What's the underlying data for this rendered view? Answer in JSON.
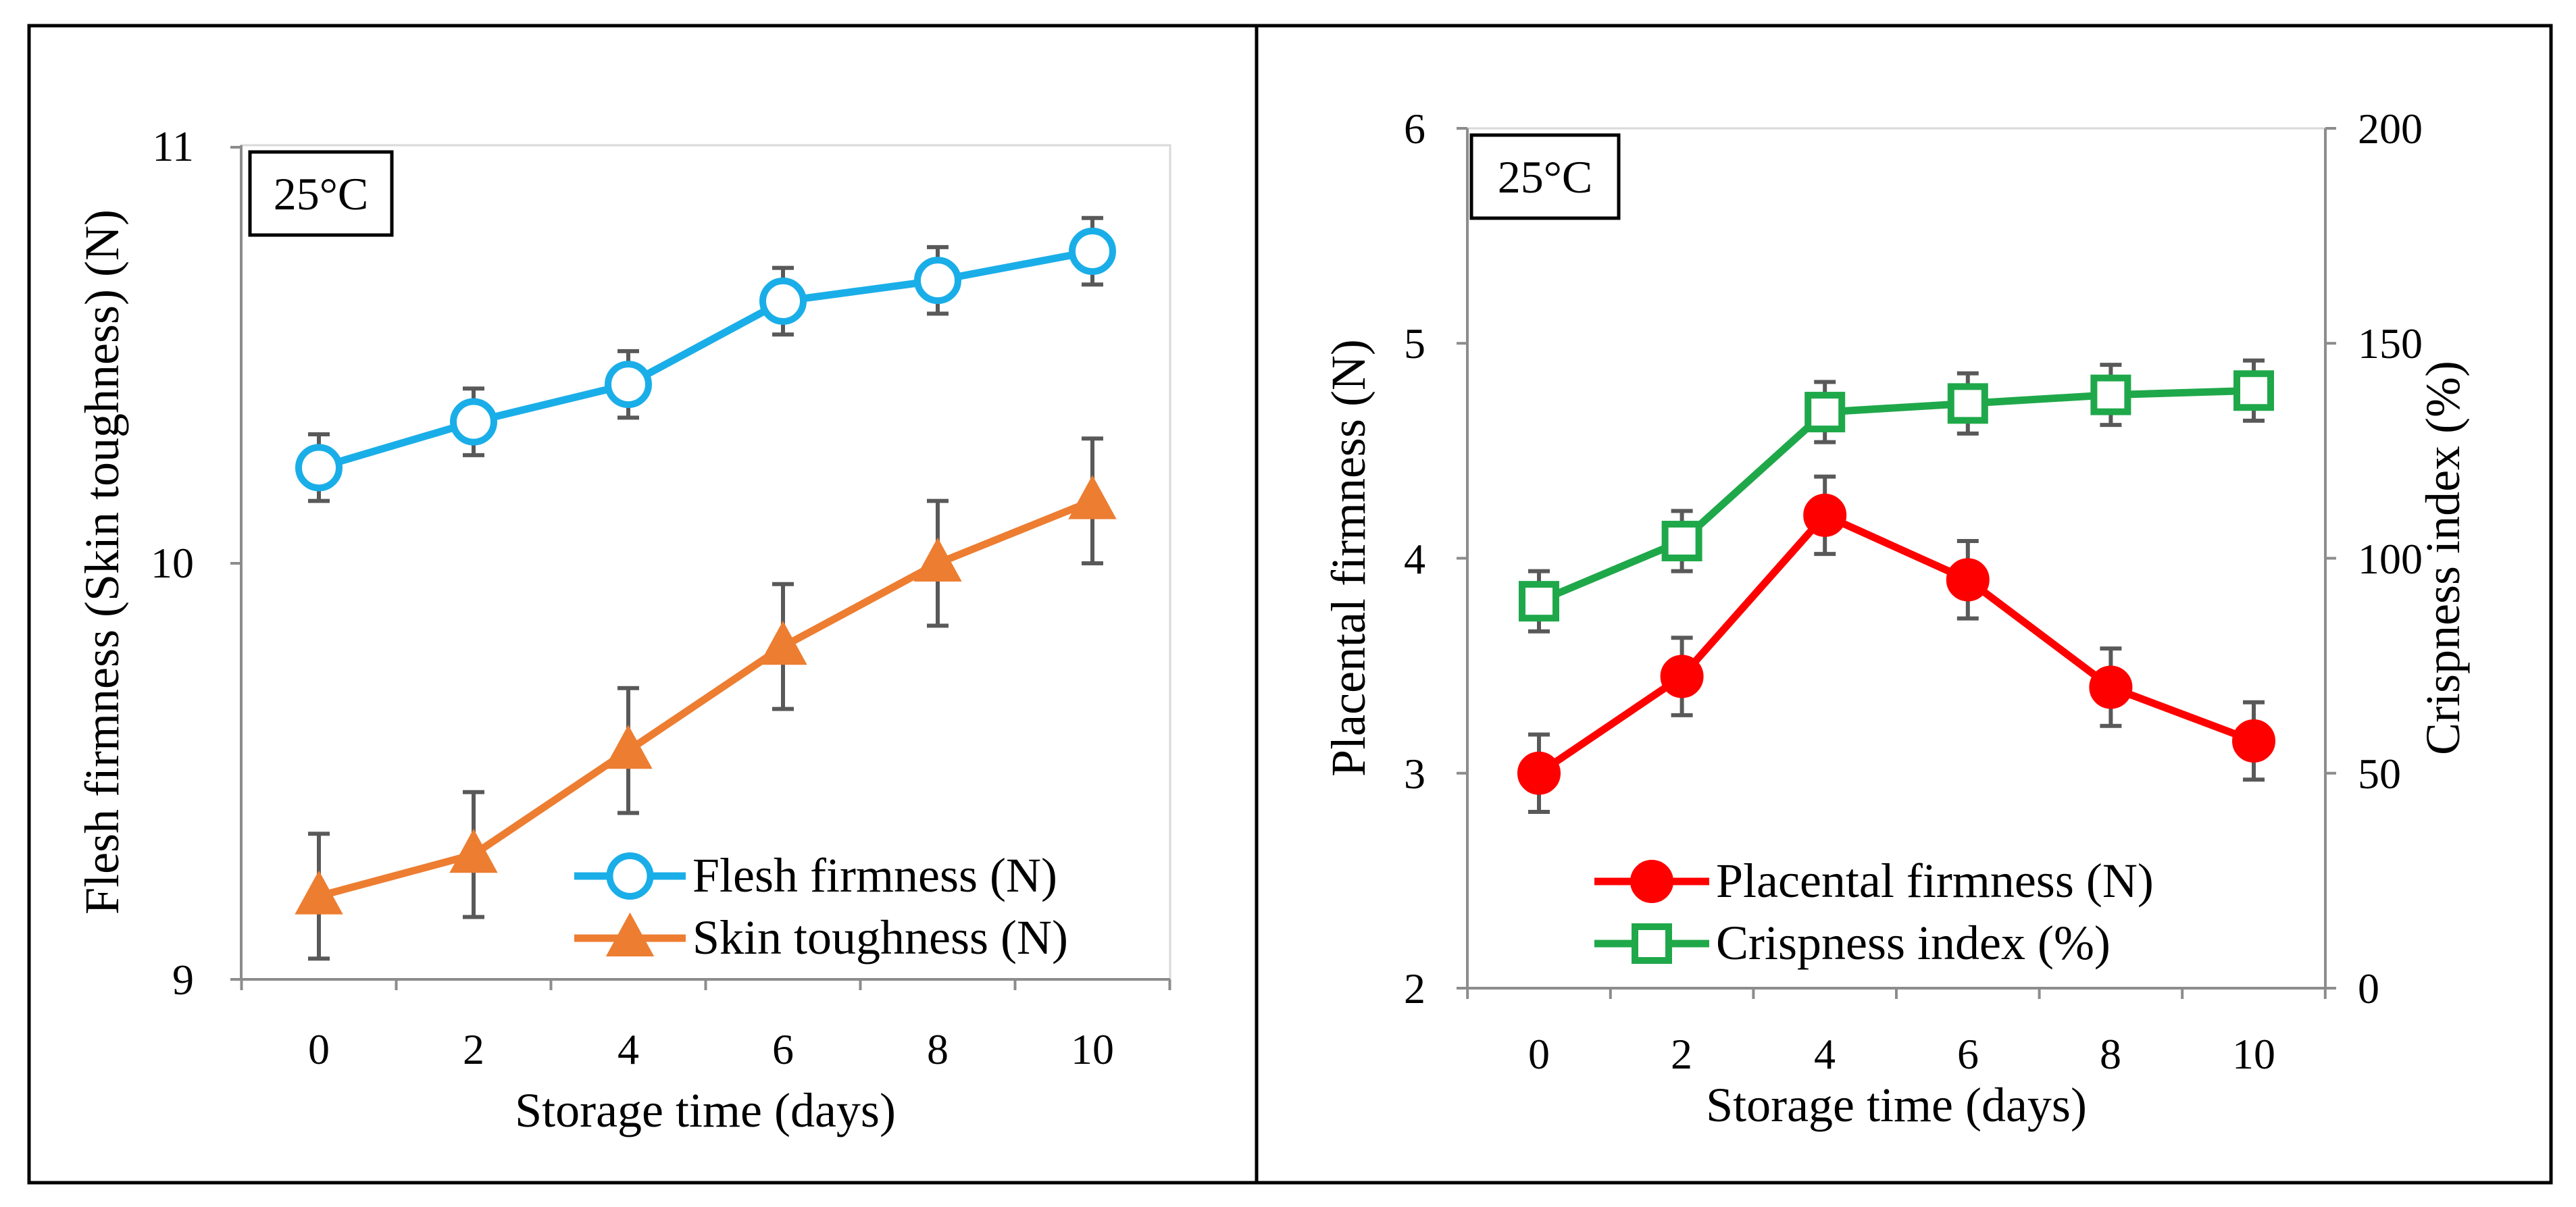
{
  "chart_data": [
    {
      "type": "line",
      "badge": "25°C",
      "xlabel": "Storage time (days)",
      "ylabel": "Flesh firmness (Skin toughness) (N)",
      "x": [
        0,
        2,
        4,
        6,
        8,
        10
      ],
      "x_ticks": [
        "0",
        "2",
        "4",
        "6",
        "8",
        "10"
      ],
      "ylim": [
        9,
        11
      ],
      "y_ticks": [
        "9",
        "10",
        "11"
      ],
      "legend_position": "bottom-right",
      "series": [
        {
          "name": "Flesh firmness (N)",
          "color": "#1aaee8",
          "marker": "open-circle",
          "values": [
            10.23,
            10.34,
            10.43,
            10.63,
            10.68,
            10.75
          ],
          "errors": [
            0.08,
            0.08,
            0.08,
            0.08,
            0.08,
            0.08
          ]
        },
        {
          "name": "Skin toughness (N)",
          "color": "#ed7d31",
          "marker": "filled-triangle",
          "values": [
            9.2,
            9.3,
            9.55,
            9.8,
            10.0,
            10.15
          ],
          "errors": [
            0.15,
            0.15,
            0.15,
            0.15,
            0.15,
            0.15
          ]
        }
      ]
    },
    {
      "type": "line",
      "badge": "25°C",
      "xlabel": "Storage time (days)",
      "ylabel": "Placental firmness (N)",
      "y2label": "Crispness index (%)",
      "x": [
        0,
        2,
        4,
        6,
        8,
        10
      ],
      "x_ticks": [
        "0",
        "2",
        "4",
        "6",
        "8",
        "10"
      ],
      "ylim": [
        2,
        6
      ],
      "y_ticks": [
        "2",
        "3",
        "4",
        "5",
        "6"
      ],
      "y2lim": [
        0,
        200
      ],
      "y2_ticks": [
        "0",
        "50",
        "100",
        "150",
        "200"
      ],
      "legend_position": "bottom-center",
      "series": [
        {
          "name": "Placental firmness (N)",
          "color": "#ff0000",
          "marker": "filled-circle",
          "axis": "left",
          "values": [
            3.0,
            3.45,
            4.2,
            3.9,
            3.4,
            3.15
          ],
          "errors": [
            0.18,
            0.18,
            0.18,
            0.18,
            0.18,
            0.18
          ]
        },
        {
          "name": "Crispness index (%)",
          "color": "#1fa84a",
          "marker": "open-square",
          "axis": "right",
          "values": [
            90,
            104,
            134,
            136,
            138,
            139
          ],
          "errors": [
            7,
            7,
            7,
            7,
            7,
            7
          ]
        }
      ]
    }
  ]
}
